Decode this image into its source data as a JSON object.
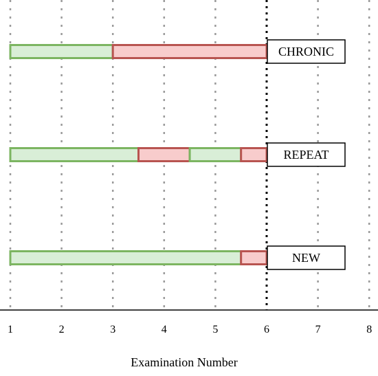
{
  "chart_data": {
    "type": "bar",
    "orientation": "horizontal-timeline",
    "title": "",
    "xlabel": "Examination Number",
    "ylabel": "",
    "xlim": [
      1,
      8
    ],
    "xticks": [
      1,
      2,
      3,
      4,
      5,
      6,
      7,
      8
    ],
    "grid": "vertical-dotted",
    "reference_line": {
      "x": 6,
      "style": "dotted"
    },
    "colors": {
      "green_fill": "#d9eed7",
      "green_stroke": "#7cb561",
      "red_fill": "#f8cccc",
      "red_stroke": "#b85450",
      "grid": "#9a9a9a",
      "reference": "#000000"
    },
    "rows": [
      {
        "label": "CHRONIC",
        "segments": [
          {
            "start": 1,
            "end": 3,
            "color": "green"
          },
          {
            "start": 3,
            "end": 6,
            "color": "red"
          }
        ]
      },
      {
        "label": "REPEAT",
        "segments": [
          {
            "start": 1,
            "end": 3.5,
            "color": "green"
          },
          {
            "start": 3.5,
            "end": 4.5,
            "color": "red"
          },
          {
            "start": 4.5,
            "end": 5.5,
            "color": "green"
          },
          {
            "start": 5.5,
            "end": 6,
            "color": "red"
          }
        ]
      },
      {
        "label": "NEW",
        "segments": [
          {
            "start": 1,
            "end": 5.5,
            "color": "green"
          },
          {
            "start": 5.5,
            "end": 6,
            "color": "red"
          }
        ]
      }
    ]
  }
}
